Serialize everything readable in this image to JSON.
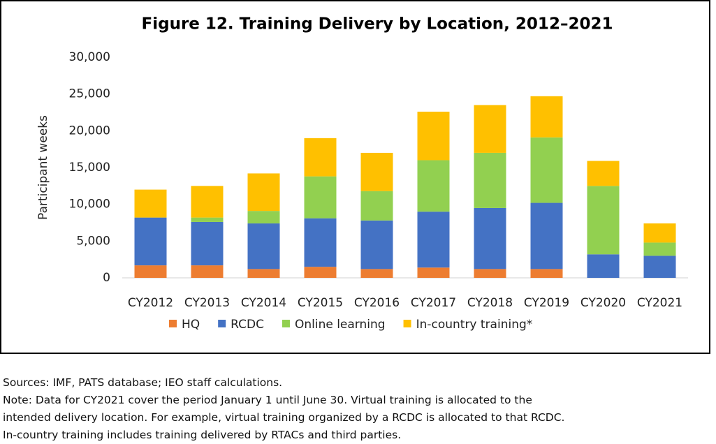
{
  "chart_data": {
    "type": "stacked_bar",
    "title": "Figure 12. Training Delivery by Location, 2012–2021",
    "y_label": "Participant weeks",
    "categories": [
      "CY2012",
      "CY2013",
      "CY2014",
      "CY2015",
      "CY2016",
      "CY2017",
      "CY2018",
      "CY2019",
      "CY2020",
      "CY2021"
    ],
    "series": [
      {
        "name": "HQ",
        "color": "#ed7d31",
        "values": [
          1700,
          1700,
          1200,
          1500,
          1200,
          1400,
          1200,
          1200,
          0,
          0
        ]
      },
      {
        "name": "RCDC",
        "color": "#4472c4",
        "values": [
          6500,
          5900,
          6200,
          6600,
          6600,
          7600,
          8300,
          9000,
          3200,
          3000
        ]
      },
      {
        "name": "Online learning",
        "color": "#92d050",
        "values": [
          0,
          600,
          1700,
          5700,
          4000,
          7000,
          7500,
          8900,
          9300,
          1800
        ]
      },
      {
        "name": "In-country training*",
        "color": "#ffc000",
        "values": [
          3800,
          4300,
          5100,
          5200,
          5200,
          6600,
          6500,
          5600,
          3400,
          2600
        ]
      }
    ],
    "ylim": [
      0,
      30000
    ],
    "yticks": [
      0,
      {
        "value": 5000,
        "label": "5,000"
      },
      {
        "value": 10000,
        "label": "10,000"
      },
      {
        "value": 15000,
        "label": "15,000"
      },
      {
        "value": 20000,
        "label": "20,000"
      },
      {
        "value": 25000,
        "label": "25,000"
      },
      {
        "value": 30000,
        "label": "30,000"
      }
    ],
    "grid": false,
    "legend": "bottom"
  },
  "notes": [
    "Sources: IMF, PATS database; IEO staff calculations.",
    "Note: Data for CY2021 cover the period January 1 until June 30. Virtual training is allocated to the",
    "intended delivery location. For example, virtual training organized by a RCDC is allocated to that RCDC.",
    "In-country training includes training delivered by RTACs and third parties."
  ]
}
